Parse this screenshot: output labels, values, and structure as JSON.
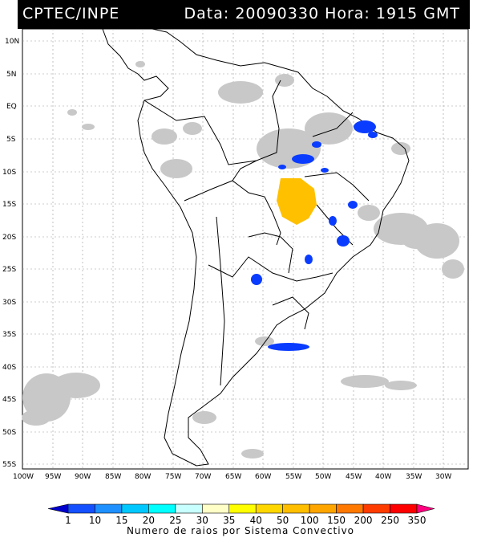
{
  "header": {
    "left": "CPTEC/INPE",
    "right": "Data: 20090330 Hora: 1915 GMT"
  },
  "axes": {
    "lat_labels": [
      "10N",
      "5N",
      "EQ",
      "5S",
      "10S",
      "15S",
      "20S",
      "25S",
      "30S",
      "35S",
      "40S",
      "45S",
      "50S",
      "55S"
    ],
    "lon_labels": [
      "100W",
      "95W",
      "90W",
      "85W",
      "80W",
      "75W",
      "70W",
      "65W",
      "60W",
      "55W",
      "50W",
      "45W",
      "40W",
      "35W",
      "30W"
    ]
  },
  "colorbar": {
    "title": "Numero de raios por Sistema Convectivo",
    "labels": [
      "1",
      "10",
      "15",
      "20",
      "25",
      "30",
      "35",
      "40",
      "50",
      "100",
      "150",
      "200",
      "250",
      "350"
    ],
    "colors": [
      "#0000cc",
      "#1450ff",
      "#1e90ff",
      "#00c8ff",
      "#00ffff",
      "#c8ffff",
      "#ffffc8",
      "#ffff00",
      "#ffd700",
      "#ffbe00",
      "#ffa500",
      "#ff7800",
      "#ff3c00",
      "#ff0000",
      "#ff0080"
    ]
  },
  "colors": {
    "cloud": "#c8c8c8",
    "storm_blue": "#0a3cff",
    "storm_orange": "#ffc000"
  }
}
